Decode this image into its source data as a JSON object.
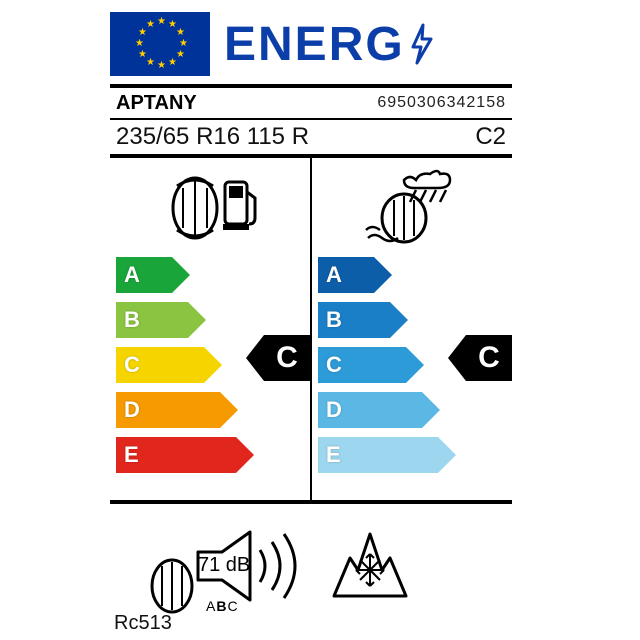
{
  "header": {
    "title": "ENERG"
  },
  "brand": "APTANY",
  "ean": "6950306342158",
  "tyreSize": "235/65 R16 115 R",
  "tyreClass": "C2",
  "model": "Rc513",
  "fuel": {
    "rating": "C",
    "letters": [
      "A",
      "B",
      "C",
      "D",
      "E"
    ],
    "colors": [
      "#1aa53a",
      "#8ac440",
      "#f5d400",
      "#f59a00",
      "#e1261d"
    ],
    "widths": [
      56,
      72,
      88,
      104,
      120
    ]
  },
  "wet": {
    "rating": "C",
    "letters": [
      "A",
      "B",
      "C",
      "D",
      "E"
    ],
    "colors": [
      "#0d5ea8",
      "#1a7fc7",
      "#2d9bd8",
      "#5bb8e4",
      "#9dd6ef"
    ],
    "widths": [
      56,
      72,
      88,
      104,
      120
    ]
  },
  "noise": {
    "db": "71 dB",
    "abc": [
      "A",
      "B",
      "C"
    ],
    "selected": "B"
  },
  "badgeTopOffset": 92
}
